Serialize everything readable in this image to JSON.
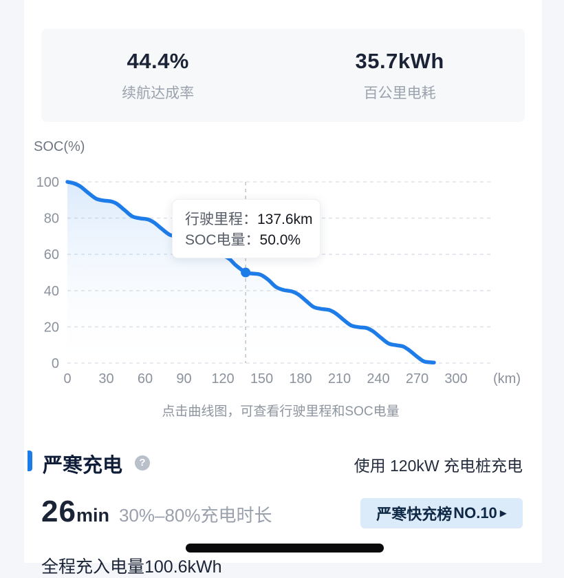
{
  "colors": {
    "page_bg": "#f4f6f9",
    "accent_blue": "#1e7ce9",
    "gridline": "#dfe3e9",
    "axis_text": "#8b929d",
    "badge_bg": "#dcebfa",
    "badge_text": "#0d2745"
  },
  "stats": {
    "items": [
      {
        "value": "44.4%",
        "label": "续航达成率"
      },
      {
        "value": "35.7kWh",
        "label": "百公里电耗"
      }
    ]
  },
  "chart": {
    "y_axis_title": "SOC(%)",
    "caption": "点击曲线图，可查看行驶里程和SOC电量",
    "tooltip": {
      "rows": [
        {
          "label": "行驶里程：",
          "value": "137.6km"
        },
        {
          "label": "SOC电量：",
          "value": "50.0%"
        }
      ]
    }
  },
  "chart_data": {
    "type": "area",
    "title": "",
    "xlabel": "(km)",
    "ylabel": "SOC(%)",
    "x_unit_label": "(km)",
    "x_ticks": [
      0,
      30,
      60,
      90,
      120,
      150,
      180,
      210,
      240,
      270,
      300
    ],
    "y_ticks": [
      0,
      20,
      40,
      60,
      80,
      100
    ],
    "xlim": [
      0,
      330
    ],
    "ylim": [
      0,
      100
    ],
    "grid": "horizontal-dashed",
    "legend_position": "none",
    "line_color": "#1e7ce9",
    "series": [
      {
        "name": "SOC",
        "points": [
          [
            0,
            100
          ],
          [
            5,
            99.2
          ],
          [
            10,
            97.5
          ],
          [
            16,
            94
          ],
          [
            22,
            90.8
          ],
          [
            27,
            89.8
          ],
          [
            33,
            89.3
          ],
          [
            38,
            88
          ],
          [
            44,
            84.5
          ],
          [
            50,
            81
          ],
          [
            56,
            79.9
          ],
          [
            62,
            79.3
          ],
          [
            67,
            77.5
          ],
          [
            73,
            74
          ],
          [
            79,
            70.8
          ],
          [
            85,
            69.8
          ],
          [
            91,
            69.3
          ],
          [
            96,
            67.5
          ],
          [
            102,
            64
          ],
          [
            108,
            60.8
          ],
          [
            114,
            59.8
          ],
          [
            120,
            59.3
          ],
          [
            125,
            57.5
          ],
          [
            130,
            54
          ],
          [
            137.6,
            50
          ],
          [
            143,
            49.4
          ],
          [
            149,
            48.8
          ],
          [
            155,
            46
          ],
          [
            161,
            42
          ],
          [
            167,
            40.3
          ],
          [
            173,
            39.6
          ],
          [
            178,
            38
          ],
          [
            184,
            34.5
          ],
          [
            190,
            31
          ],
          [
            196,
            29.9
          ],
          [
            202,
            29.3
          ],
          [
            207,
            27.5
          ],
          [
            213,
            24
          ],
          [
            219,
            20.8
          ],
          [
            225,
            19.8
          ],
          [
            231,
            19.3
          ],
          [
            236,
            17.5
          ],
          [
            242,
            14
          ],
          [
            248,
            10.8
          ],
          [
            254,
            9.8
          ],
          [
            259,
            9.2
          ],
          [
            264,
            7
          ],
          [
            270,
            3.5
          ],
          [
            275,
            1
          ],
          [
            280,
            0.4
          ],
          [
            283,
            0.3
          ]
        ]
      }
    ],
    "selected_point": {
      "x": 137.6,
      "y": 50
    }
  },
  "cold": {
    "title": "严寒充电",
    "help_symbol": "?",
    "header_right": "使用 120kW 充电桩充电",
    "duration_value": "26",
    "duration_unit": "min",
    "duration_label": "30%–80%充电时长",
    "badge_text": "严寒快充榜",
    "badge_rank": "NO.10",
    "badge_arrow": "▶",
    "bottom_text": "全程充入电量100.6kWh"
  }
}
